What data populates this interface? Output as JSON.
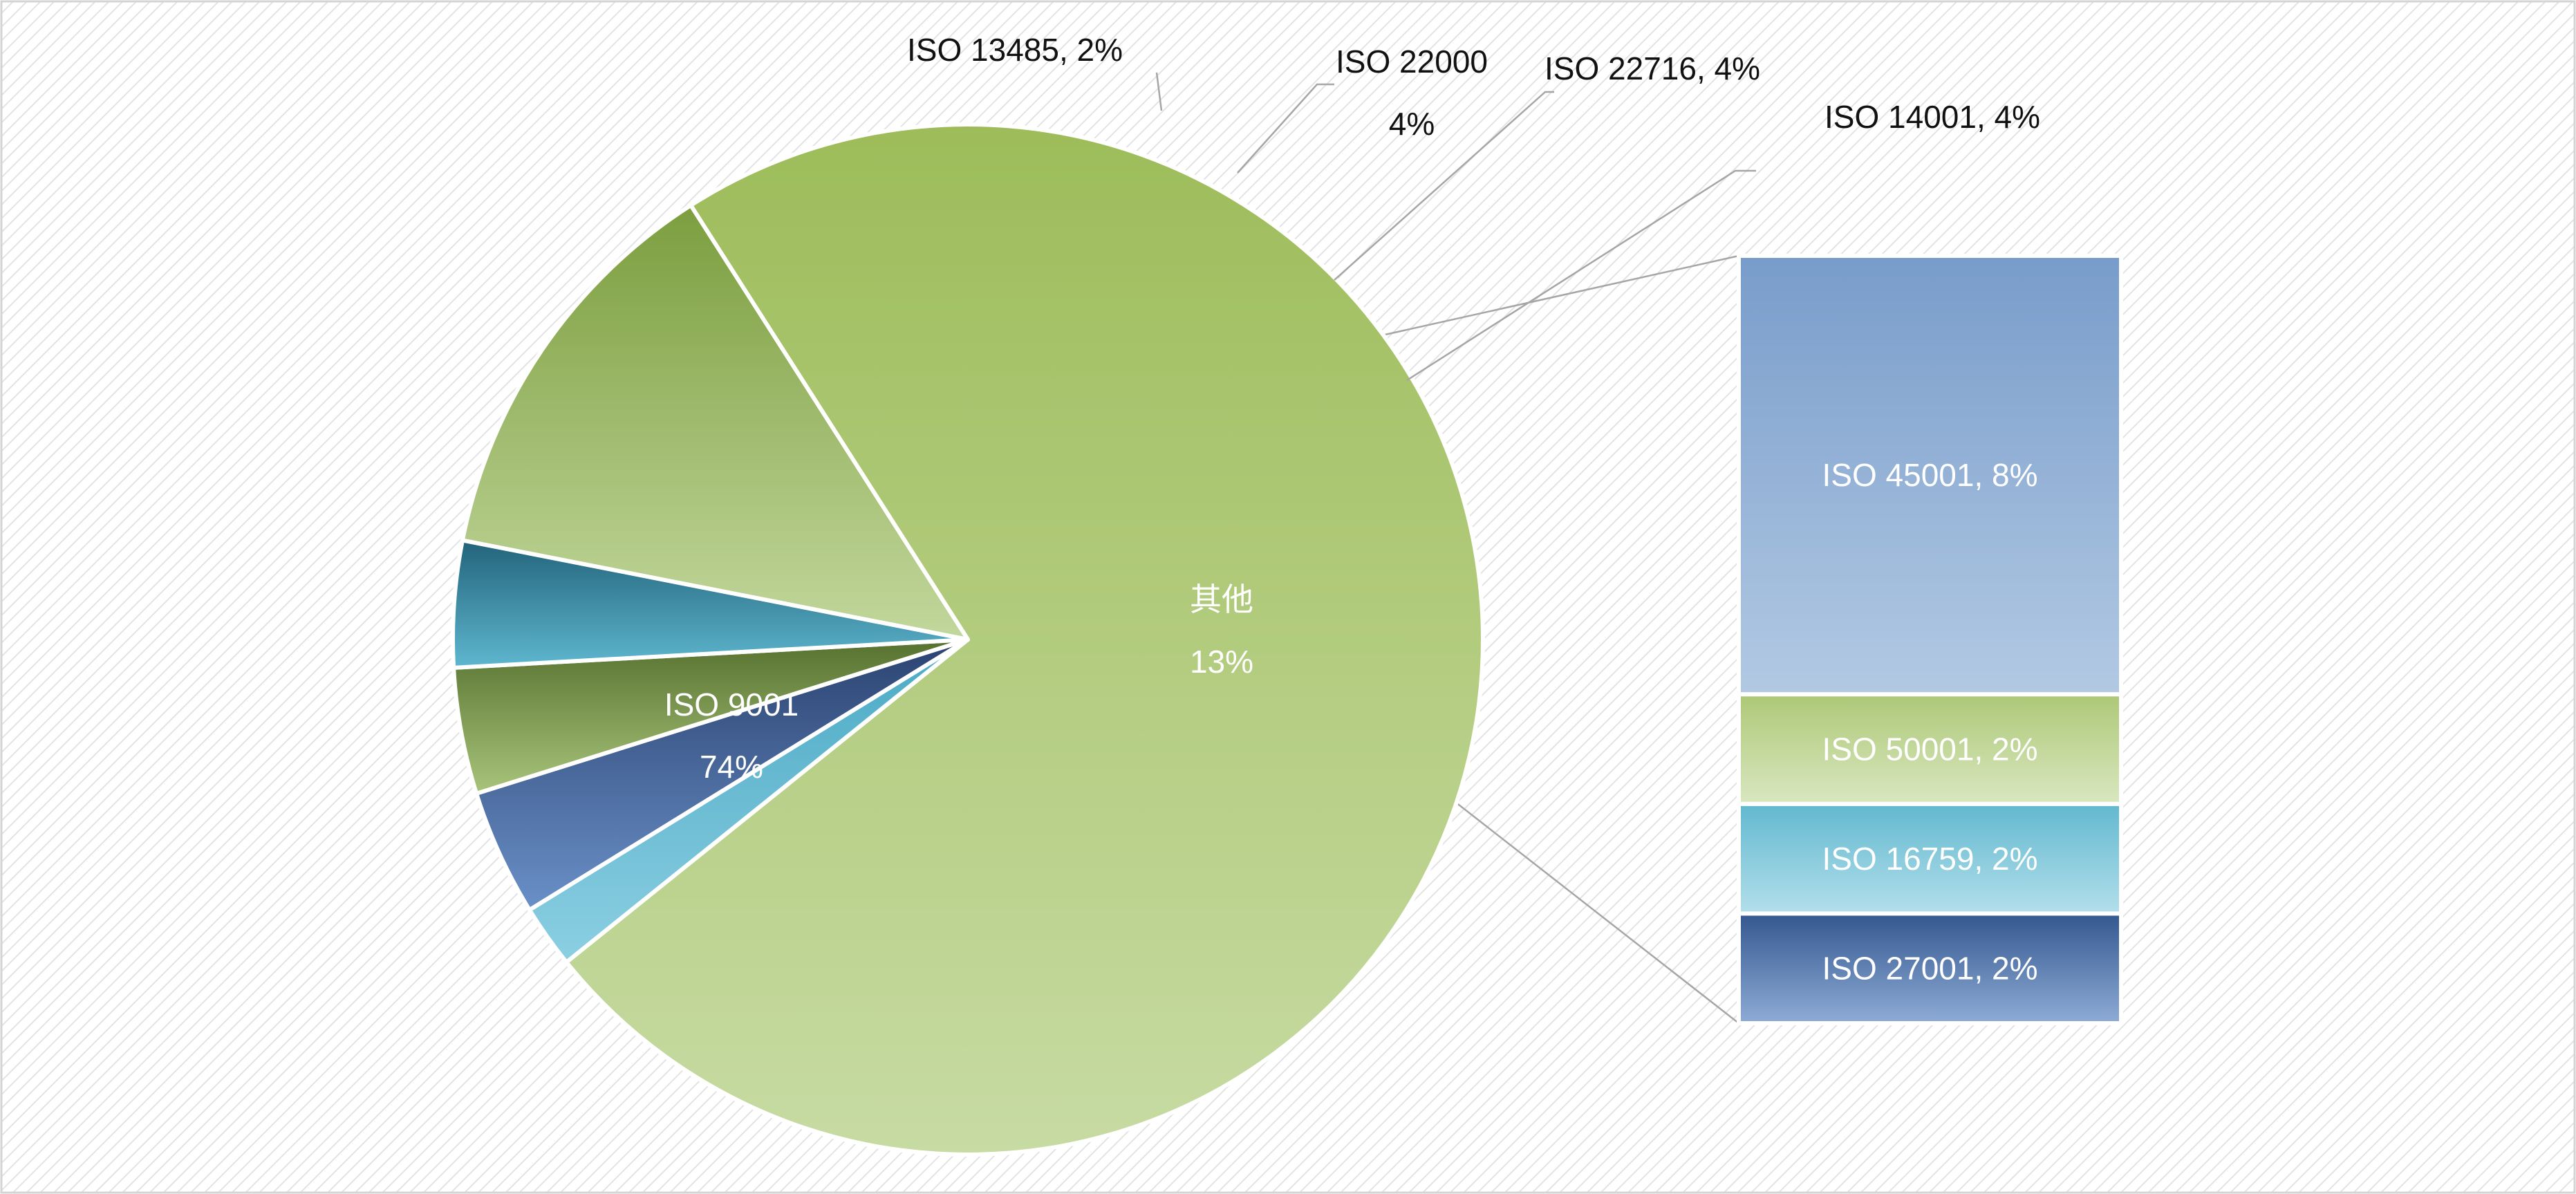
{
  "chart_data": {
    "type": "bar-of-pie",
    "pie": {
      "slices": [
        {
          "name": "ISO 9001",
          "value": 74,
          "value_label": "74%",
          "label_style": "two-line-inside",
          "fill": "gradOlive"
        },
        {
          "name": "ISO 13485",
          "value": 2,
          "value_label": "2%",
          "label_style": "one-line-outside",
          "fill": "gradLightBlue"
        },
        {
          "name": "ISO 22000",
          "value": 4,
          "value_label": "4%",
          "label_style": "two-line-outside",
          "fill": "gradNavy"
        },
        {
          "name": "ISO 22716",
          "value": 4,
          "value_label": "4%",
          "label_style": "one-line-outside",
          "fill": "gradDarkOlive"
        },
        {
          "name": "ISO 14001",
          "value": 4,
          "value_label": "4%",
          "label_style": "one-line-outside",
          "fill": "gradTeal"
        },
        {
          "name": "其他",
          "value": 13,
          "value_label": "13%",
          "label_style": "two-line-inside",
          "fill": "gradGreen"
        }
      ]
    },
    "bar": {
      "segments": [
        {
          "name": "ISO 45001",
          "value": 8,
          "value_label": "8%",
          "fill": "gradPaleBlue"
        },
        {
          "name": "ISO 50001",
          "value": 2,
          "value_label": "2%",
          "fill": "gradPaleGreen"
        },
        {
          "name": "ISO 16759",
          "value": 2,
          "value_label": "2%",
          "fill": "gradCyan"
        },
        {
          "name": "ISO 27001",
          "value": 2,
          "value_label": "2%",
          "fill": "gradMidBlue"
        }
      ]
    },
    "colors": {
      "olive": "#9dbc59",
      "light_blue": "#5ab3cc",
      "navy": "#2f4a78",
      "dark_olive": "#5e7a34",
      "teal": "#2a6e84",
      "green": "#8aaa4c",
      "pale_blue": "#7ea1cd",
      "cyan": "#6cbdd2",
      "mid_blue": "#3d6199",
      "leader_line": "#a6a6a6",
      "background_hatch": "#e3e3e3"
    }
  }
}
